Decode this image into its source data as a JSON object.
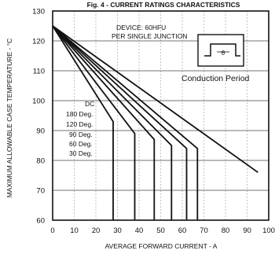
{
  "chart_data": {
    "type": "line",
    "title": "Fig. 4 - CURRENT RATINGS CHARACTERISTICS",
    "xlabel": "AVERAGE FORWARD CURRENT - A",
    "ylabel": "MAXIMUM ALLOWABLE CASE TEMPERATURE - °C",
    "xlim": [
      0,
      100
    ],
    "ylim": [
      60,
      130
    ],
    "x_ticks": [
      "0",
      "10",
      "20",
      "30",
      "40",
      "50",
      "60",
      "70",
      "80",
      "90",
      "100"
    ],
    "y_ticks": [
      "60",
      "70",
      "80",
      "90",
      "100",
      "110",
      "120",
      "130"
    ],
    "grid": true,
    "legend_position": "left-center",
    "annotation_device": "DEVICE: 60HFU",
    "annotation_junction": "PER SINGLE JUNCTION",
    "annotation_conduction": "Conduction Period",
    "conduction_symbol": "θ",
    "series": [
      {
        "name": "DC",
        "x": [
          0,
          95
        ],
        "y": [
          125,
          76
        ]
      },
      {
        "name": "180 Deg.",
        "x": [
          0,
          67,
          67
        ],
        "y": [
          125,
          84,
          60
        ]
      },
      {
        "name": "120 Deg.",
        "x": [
          0,
          62,
          62
        ],
        "y": [
          125,
          84,
          60
        ]
      },
      {
        "name": "90 Deg.",
        "x": [
          0,
          55,
          55
        ],
        "y": [
          125,
          85,
          60
        ]
      },
      {
        "name": "60 Deg.",
        "x": [
          0,
          47,
          47
        ],
        "y": [
          125,
          87,
          60
        ]
      },
      {
        "name": "30 Deg.",
        "x": [
          0,
          38,
          38
        ],
        "y": [
          125,
          89,
          60
        ]
      },
      {
        "name": "",
        "x": [
          0,
          28,
          28
        ],
        "y": [
          125,
          93,
          60
        ]
      }
    ]
  }
}
